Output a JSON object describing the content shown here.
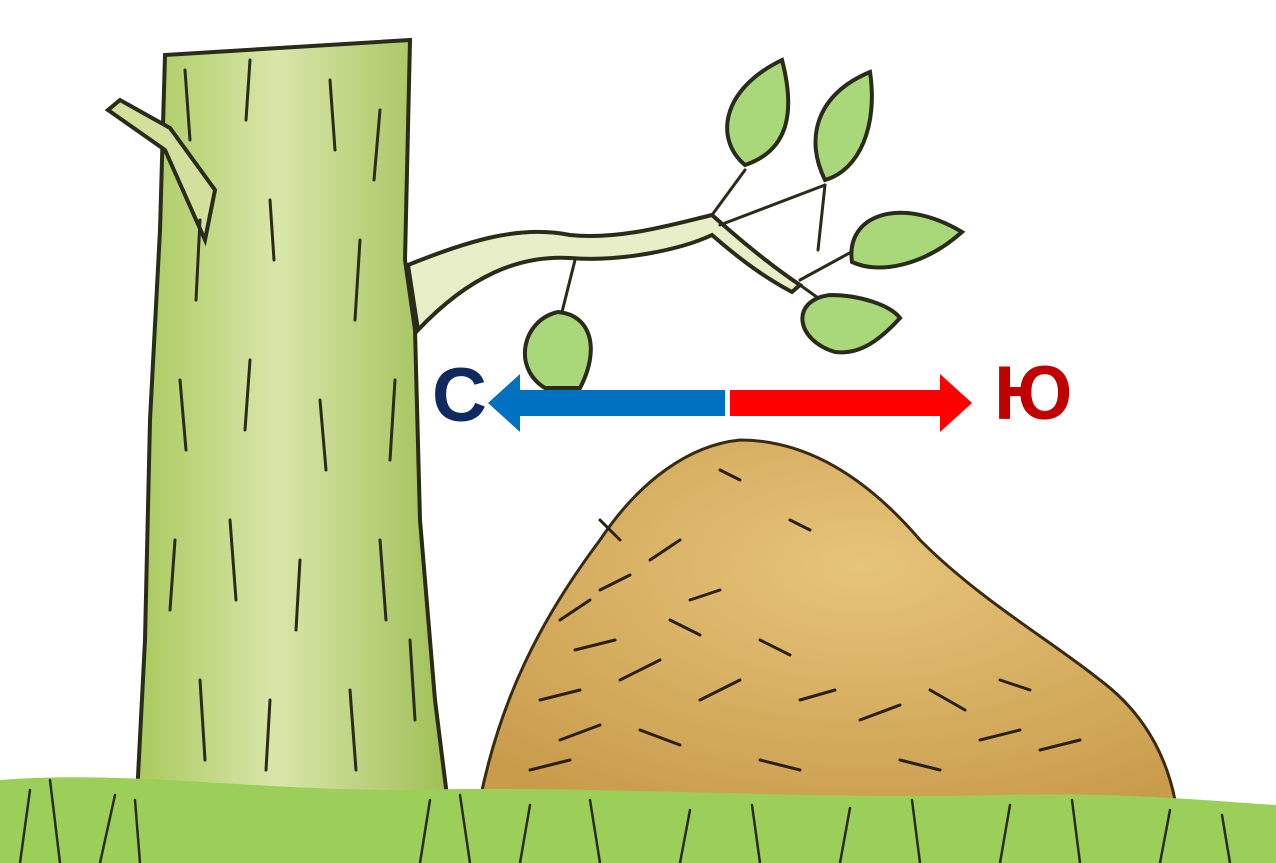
{
  "labels": {
    "north": "С",
    "south": "Ю"
  },
  "arrows": {
    "north_color": "#0070c0",
    "south_color": "#ff0000"
  },
  "colors": {
    "label_north": "#0e2a5f",
    "label_south": "#c00000",
    "trunk": "#c9d989",
    "leaf": "#a8d87a",
    "anthill": "#d4ae62",
    "grass": "#9bcf5a"
  },
  "icons": [
    "tree-trunk-icon",
    "branch-icon",
    "leaf-icon",
    "anthill-icon",
    "grass-icon"
  ]
}
